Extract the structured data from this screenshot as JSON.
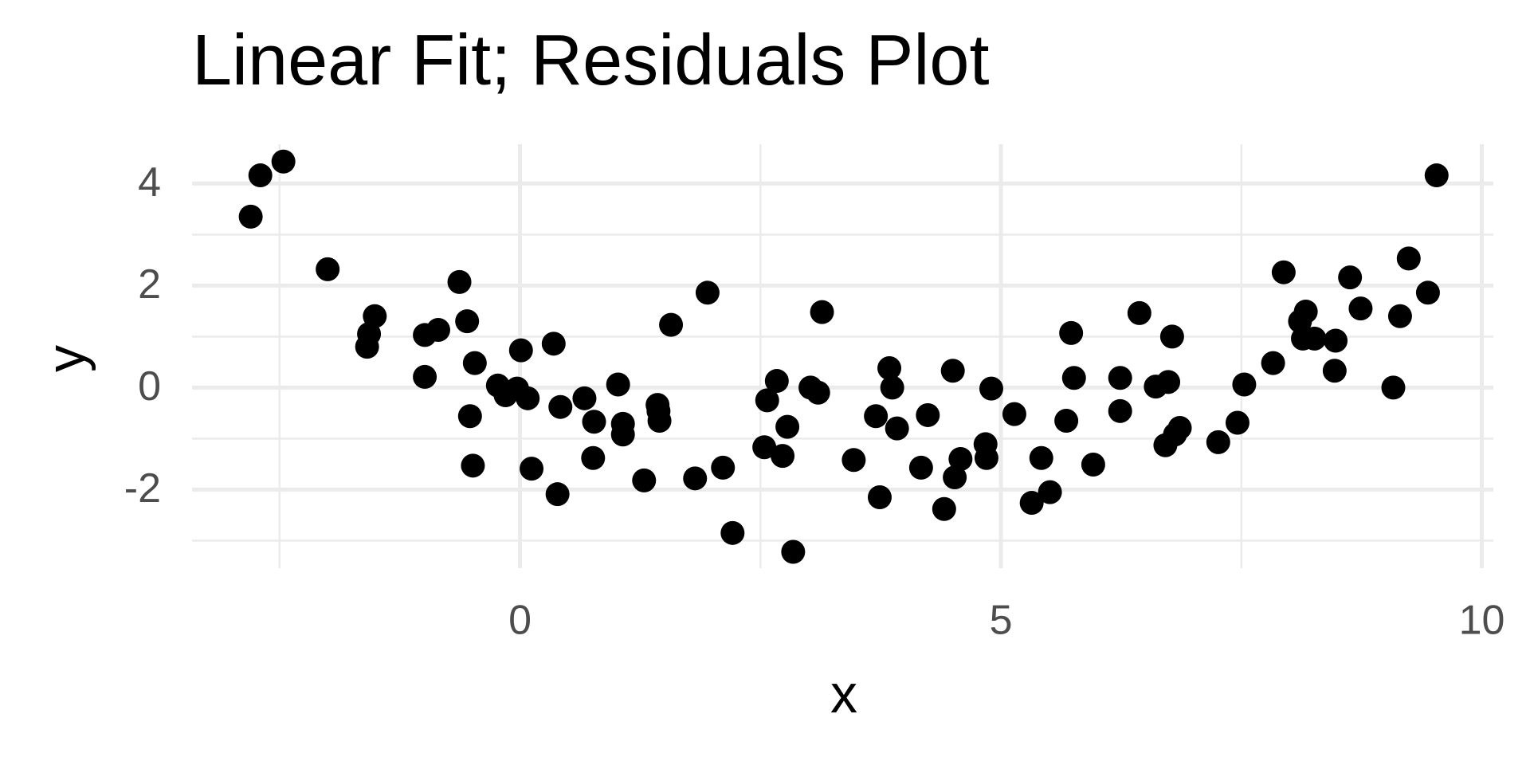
{
  "chart_data": {
    "type": "scatter",
    "title": "Linear Fit; Residuals Plot",
    "xlabel": "x",
    "ylabel": "y",
    "color": "#000000",
    "grid": true,
    "xlim": [
      -3.41,
      10.12
    ],
    "ylim": [
      -3.54,
      4.77
    ],
    "xticks": [
      0,
      5,
      10
    ],
    "yticks": [
      -2,
      0,
      2,
      4
    ],
    "xminor": [
      -2.5,
      2.5,
      7.5
    ],
    "yminor": [
      -3,
      -1,
      1,
      3
    ],
    "x": [
      -2.8,
      -2.7,
      -2.46,
      -2.0,
      -1.59,
      -1.57,
      -1.51,
      -0.99,
      -0.85,
      -0.99,
      -0.63,
      -0.55,
      -0.47,
      -0.52,
      -0.49,
      -0.23,
      -0.15,
      -0.03,
      0.01,
      0.08,
      0.12,
      0.35,
      0.39,
      0.42,
      0.67,
      0.77,
      0.76,
      1.02,
      1.07,
      1.07,
      1.29,
      1.43,
      1.44,
      1.45,
      1.57,
      1.82,
      1.95,
      2.11,
      2.21,
      2.54,
      2.57,
      2.67,
      2.73,
      2.78,
      2.84,
      3.02,
      3.1,
      3.14,
      3.47,
      3.7,
      3.74,
      3.84,
      3.87,
      3.92,
      4.17,
      4.24,
      4.41,
      4.5,
      4.52,
      4.58,
      4.84,
      4.85,
      4.9,
      5.14,
      5.32,
      5.42,
      5.51,
      5.68,
      5.73,
      5.76,
      5.96,
      6.24,
      6.24,
      6.44,
      6.61,
      6.71,
      6.74,
      6.78,
      6.81,
      6.86,
      7.26,
      7.46,
      7.53,
      7.83,
      7.94,
      8.11,
      8.17,
      8.14,
      8.26,
      8.47,
      8.48,
      8.63,
      8.74,
      9.08,
      9.15,
      9.24,
      9.44,
      9.53
    ],
    "values": [
      3.35,
      4.16,
      4.43,
      2.32,
      0.8,
      1.05,
      1.4,
      1.03,
      1.13,
      0.21,
      2.07,
      1.3,
      0.48,
      -0.56,
      -1.53,
      0.04,
      -0.15,
      -0.02,
      0.73,
      -0.21,
      -1.59,
      0.86,
      -2.09,
      -0.38,
      -0.21,
      -0.67,
      -1.38,
      0.06,
      -0.71,
      -0.92,
      -1.82,
      -0.34,
      -0.46,
      -0.65,
      1.23,
      -1.78,
      1.86,
      -1.57,
      -2.85,
      -1.17,
      -0.25,
      0.13,
      -1.34,
      -0.77,
      -3.22,
      0.0,
      -0.1,
      1.48,
      -1.42,
      -0.56,
      -2.15,
      0.38,
      0.0,
      -0.8,
      -1.57,
      -0.54,
      -2.38,
      0.33,
      -1.76,
      -1.4,
      -1.11,
      -1.38,
      -0.02,
      -0.52,
      -2.26,
      -1.38,
      -2.05,
      -0.65,
      1.07,
      0.19,
      -1.51,
      -0.46,
      0.19,
      1.46,
      0.02,
      -1.13,
      0.11,
      1.0,
      -0.92,
      -0.79,
      -1.07,
      -0.69,
      0.06,
      0.48,
      2.26,
      1.3,
      1.49,
      0.96,
      0.96,
      0.33,
      0.92,
      2.16,
      1.55,
      0.0,
      1.4,
      2.53,
      1.86,
      4.16
    ]
  }
}
